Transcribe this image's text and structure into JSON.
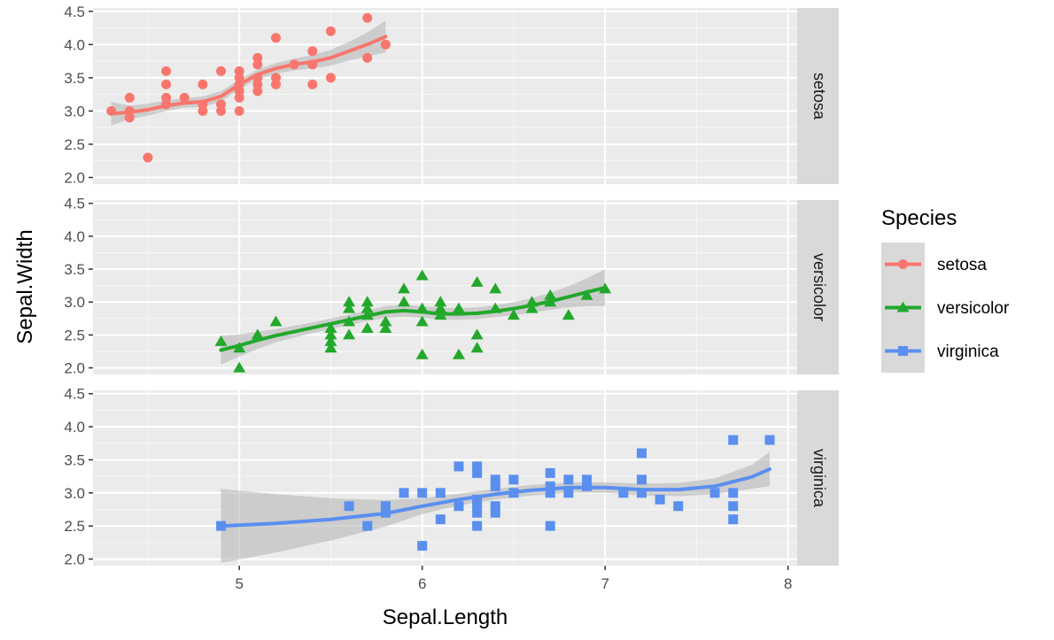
{
  "chart_data": {
    "type": "scatter",
    "facet_by": "Species",
    "facets": [
      "setosa",
      "versicolor",
      "virginica"
    ],
    "xlabel": "Sepal.Length",
    "ylabel": "Sepal.Width",
    "xlim": [
      4.2,
      8.05
    ],
    "ylim": [
      1.9,
      4.55
    ],
    "x_ticks": [
      5,
      6,
      7,
      8
    ],
    "y_ticks": [
      2.0,
      2.5,
      3.0,
      3.5,
      4.0,
      4.5
    ],
    "y_tick_labels": [
      "2.0",
      "2.5",
      "3.0",
      "3.5",
      "4.0",
      "4.5"
    ],
    "x_tick_labels": [
      "5",
      "6",
      "7",
      "8"
    ],
    "legend": {
      "title": "Species",
      "position": "right",
      "entries": [
        "setosa",
        "versicolor",
        "virginica"
      ]
    },
    "colors": {
      "setosa": "#f8766d",
      "versicolor": "#22a82b",
      "virginica": "#5a8ff0",
      "panel_bg": "#ebebeb",
      "strip_bg": "#d9d9d9",
      "ribbon": "#b3b3b3"
    },
    "series": [
      {
        "name": "setosa",
        "marker": "circle",
        "points": [
          [
            4.3,
            3.0
          ],
          [
            4.4,
            2.9
          ],
          [
            4.4,
            3.0
          ],
          [
            4.4,
            3.2
          ],
          [
            4.5,
            2.3
          ],
          [
            4.6,
            3.1
          ],
          [
            4.6,
            3.2
          ],
          [
            4.6,
            3.4
          ],
          [
            4.6,
            3.6
          ],
          [
            4.7,
            3.2
          ],
          [
            4.8,
            3.0
          ],
          [
            4.8,
            3.1
          ],
          [
            4.8,
            3.4
          ],
          [
            4.9,
            3.0
          ],
          [
            4.9,
            3.1
          ],
          [
            4.9,
            3.6
          ],
          [
            5.0,
            3.0
          ],
          [
            5.0,
            3.2
          ],
          [
            5.0,
            3.3
          ],
          [
            5.0,
            3.4
          ],
          [
            5.0,
            3.5
          ],
          [
            5.0,
            3.6
          ],
          [
            5.1,
            3.3
          ],
          [
            5.1,
            3.4
          ],
          [
            5.1,
            3.5
          ],
          [
            5.1,
            3.7
          ],
          [
            5.1,
            3.8
          ],
          [
            5.2,
            3.4
          ],
          [
            5.2,
            3.5
          ],
          [
            5.2,
            4.1
          ],
          [
            5.3,
            3.7
          ],
          [
            5.4,
            3.4
          ],
          [
            5.4,
            3.7
          ],
          [
            5.4,
            3.9
          ],
          [
            5.5,
            3.5
          ],
          [
            5.5,
            4.2
          ],
          [
            5.7,
            3.8
          ],
          [
            5.7,
            4.4
          ],
          [
            5.8,
            4.0
          ]
        ],
        "smooth": [
          [
            4.3,
            2.96
          ],
          [
            4.4,
            2.98
          ],
          [
            4.5,
            3.02
          ],
          [
            4.6,
            3.08
          ],
          [
            4.7,
            3.12
          ],
          [
            4.8,
            3.14
          ],
          [
            4.9,
            3.22
          ],
          [
            5.0,
            3.4
          ],
          [
            5.1,
            3.55
          ],
          [
            5.2,
            3.64
          ],
          [
            5.3,
            3.7
          ],
          [
            5.4,
            3.74
          ],
          [
            5.5,
            3.8
          ],
          [
            5.6,
            3.9
          ],
          [
            5.7,
            4.0
          ],
          [
            5.8,
            4.12
          ]
        ],
        "band": [
          0.18,
          0.1,
          0.09,
          0.08,
          0.07,
          0.08,
          0.08,
          0.07,
          0.07,
          0.08,
          0.09,
          0.1,
          0.12,
          0.14,
          0.18,
          0.24
        ]
      },
      {
        "name": "versicolor",
        "marker": "triangle",
        "points": [
          [
            4.9,
            2.4
          ],
          [
            5.0,
            2.0
          ],
          [
            5.0,
            2.3
          ],
          [
            5.1,
            2.5
          ],
          [
            5.2,
            2.7
          ],
          [
            5.5,
            2.3
          ],
          [
            5.5,
            2.4
          ],
          [
            5.5,
            2.5
          ],
          [
            5.5,
            2.6
          ],
          [
            5.6,
            2.5
          ],
          [
            5.6,
            2.7
          ],
          [
            5.6,
            2.9
          ],
          [
            5.6,
            3.0
          ],
          [
            5.7,
            2.6
          ],
          [
            5.7,
            2.8
          ],
          [
            5.7,
            2.9
          ],
          [
            5.7,
            3.0
          ],
          [
            5.8,
            2.6
          ],
          [
            5.8,
            2.7
          ],
          [
            5.9,
            3.0
          ],
          [
            5.9,
            3.2
          ],
          [
            6.0,
            2.2
          ],
          [
            6.0,
            2.7
          ],
          [
            6.0,
            2.9
          ],
          [
            6.0,
            3.4
          ],
          [
            6.1,
            2.8
          ],
          [
            6.1,
            2.9
          ],
          [
            6.1,
            3.0
          ],
          [
            6.2,
            2.2
          ],
          [
            6.2,
            2.9
          ],
          [
            6.3,
            2.3
          ],
          [
            6.3,
            2.5
          ],
          [
            6.3,
            3.3
          ],
          [
            6.4,
            2.9
          ],
          [
            6.4,
            3.2
          ],
          [
            6.5,
            2.8
          ],
          [
            6.6,
            2.9
          ],
          [
            6.6,
            3.0
          ],
          [
            6.7,
            3.0
          ],
          [
            6.7,
            3.1
          ],
          [
            6.8,
            2.8
          ],
          [
            6.9,
            3.1
          ],
          [
            7.0,
            3.2
          ]
        ],
        "smooth": [
          [
            4.9,
            2.27
          ],
          [
            5.0,
            2.34
          ],
          [
            5.1,
            2.42
          ],
          [
            5.2,
            2.49
          ],
          [
            5.3,
            2.55
          ],
          [
            5.4,
            2.61
          ],
          [
            5.5,
            2.67
          ],
          [
            5.6,
            2.73
          ],
          [
            5.7,
            2.79
          ],
          [
            5.8,
            2.85
          ],
          [
            5.9,
            2.87
          ],
          [
            6.0,
            2.85
          ],
          [
            6.1,
            2.82
          ],
          [
            6.2,
            2.82
          ],
          [
            6.3,
            2.83
          ],
          [
            6.4,
            2.86
          ],
          [
            6.5,
            2.9
          ],
          [
            6.6,
            2.95
          ],
          [
            6.7,
            3.01
          ],
          [
            6.8,
            3.08
          ],
          [
            6.9,
            3.15
          ],
          [
            7.0,
            3.22
          ]
        ],
        "band": [
          0.22,
          0.17,
          0.13,
          0.1,
          0.09,
          0.08,
          0.08,
          0.08,
          0.08,
          0.09,
          0.09,
          0.09,
          0.09,
          0.09,
          0.09,
          0.09,
          0.1,
          0.11,
          0.13,
          0.16,
          0.21,
          0.28
        ]
      },
      {
        "name": "virginica",
        "marker": "square",
        "points": [
          [
            4.9,
            2.5
          ],
          [
            5.6,
            2.8
          ],
          [
            5.7,
            2.5
          ],
          [
            5.8,
            2.7
          ],
          [
            5.8,
            2.8
          ],
          [
            5.9,
            3.0
          ],
          [
            6.0,
            2.2
          ],
          [
            6.0,
            3.0
          ],
          [
            6.1,
            2.6
          ],
          [
            6.1,
            3.0
          ],
          [
            6.2,
            2.8
          ],
          [
            6.2,
            3.4
          ],
          [
            6.3,
            2.5
          ],
          [
            6.3,
            2.7
          ],
          [
            6.3,
            2.8
          ],
          [
            6.3,
            2.9
          ],
          [
            6.3,
            3.3
          ],
          [
            6.3,
            3.4
          ],
          [
            6.4,
            2.7
          ],
          [
            6.4,
            2.8
          ],
          [
            6.4,
            3.1
          ],
          [
            6.4,
            3.2
          ],
          [
            6.5,
            3.0
          ],
          [
            6.5,
            3.2
          ],
          [
            6.7,
            2.5
          ],
          [
            6.7,
            3.0
          ],
          [
            6.7,
            3.1
          ],
          [
            6.7,
            3.3
          ],
          [
            6.8,
            3.0
          ],
          [
            6.8,
            3.2
          ],
          [
            6.9,
            3.1
          ],
          [
            6.9,
            3.2
          ],
          [
            7.1,
            3.0
          ],
          [
            7.2,
            3.0
          ],
          [
            7.2,
            3.2
          ],
          [
            7.2,
            3.6
          ],
          [
            7.3,
            2.9
          ],
          [
            7.4,
            2.8
          ],
          [
            7.6,
            3.0
          ],
          [
            7.7,
            2.6
          ],
          [
            7.7,
            2.8
          ],
          [
            7.7,
            3.0
          ],
          [
            7.7,
            3.8
          ],
          [
            7.9,
            3.8
          ]
        ],
        "smooth": [
          [
            4.9,
            2.5
          ],
          [
            5.2,
            2.54
          ],
          [
            5.5,
            2.6
          ],
          [
            5.8,
            2.69
          ],
          [
            6.0,
            2.8
          ],
          [
            6.2,
            2.9
          ],
          [
            6.4,
            2.98
          ],
          [
            6.6,
            3.04
          ],
          [
            6.8,
            3.08
          ],
          [
            7.0,
            3.08
          ],
          [
            7.2,
            3.05
          ],
          [
            7.4,
            3.05
          ],
          [
            7.6,
            3.1
          ],
          [
            7.8,
            3.24
          ],
          [
            7.9,
            3.36
          ]
        ],
        "band": [
          0.56,
          0.44,
          0.32,
          0.2,
          0.12,
          0.09,
          0.08,
          0.08,
          0.08,
          0.08,
          0.09,
          0.1,
          0.12,
          0.18,
          0.26
        ]
      }
    ]
  }
}
